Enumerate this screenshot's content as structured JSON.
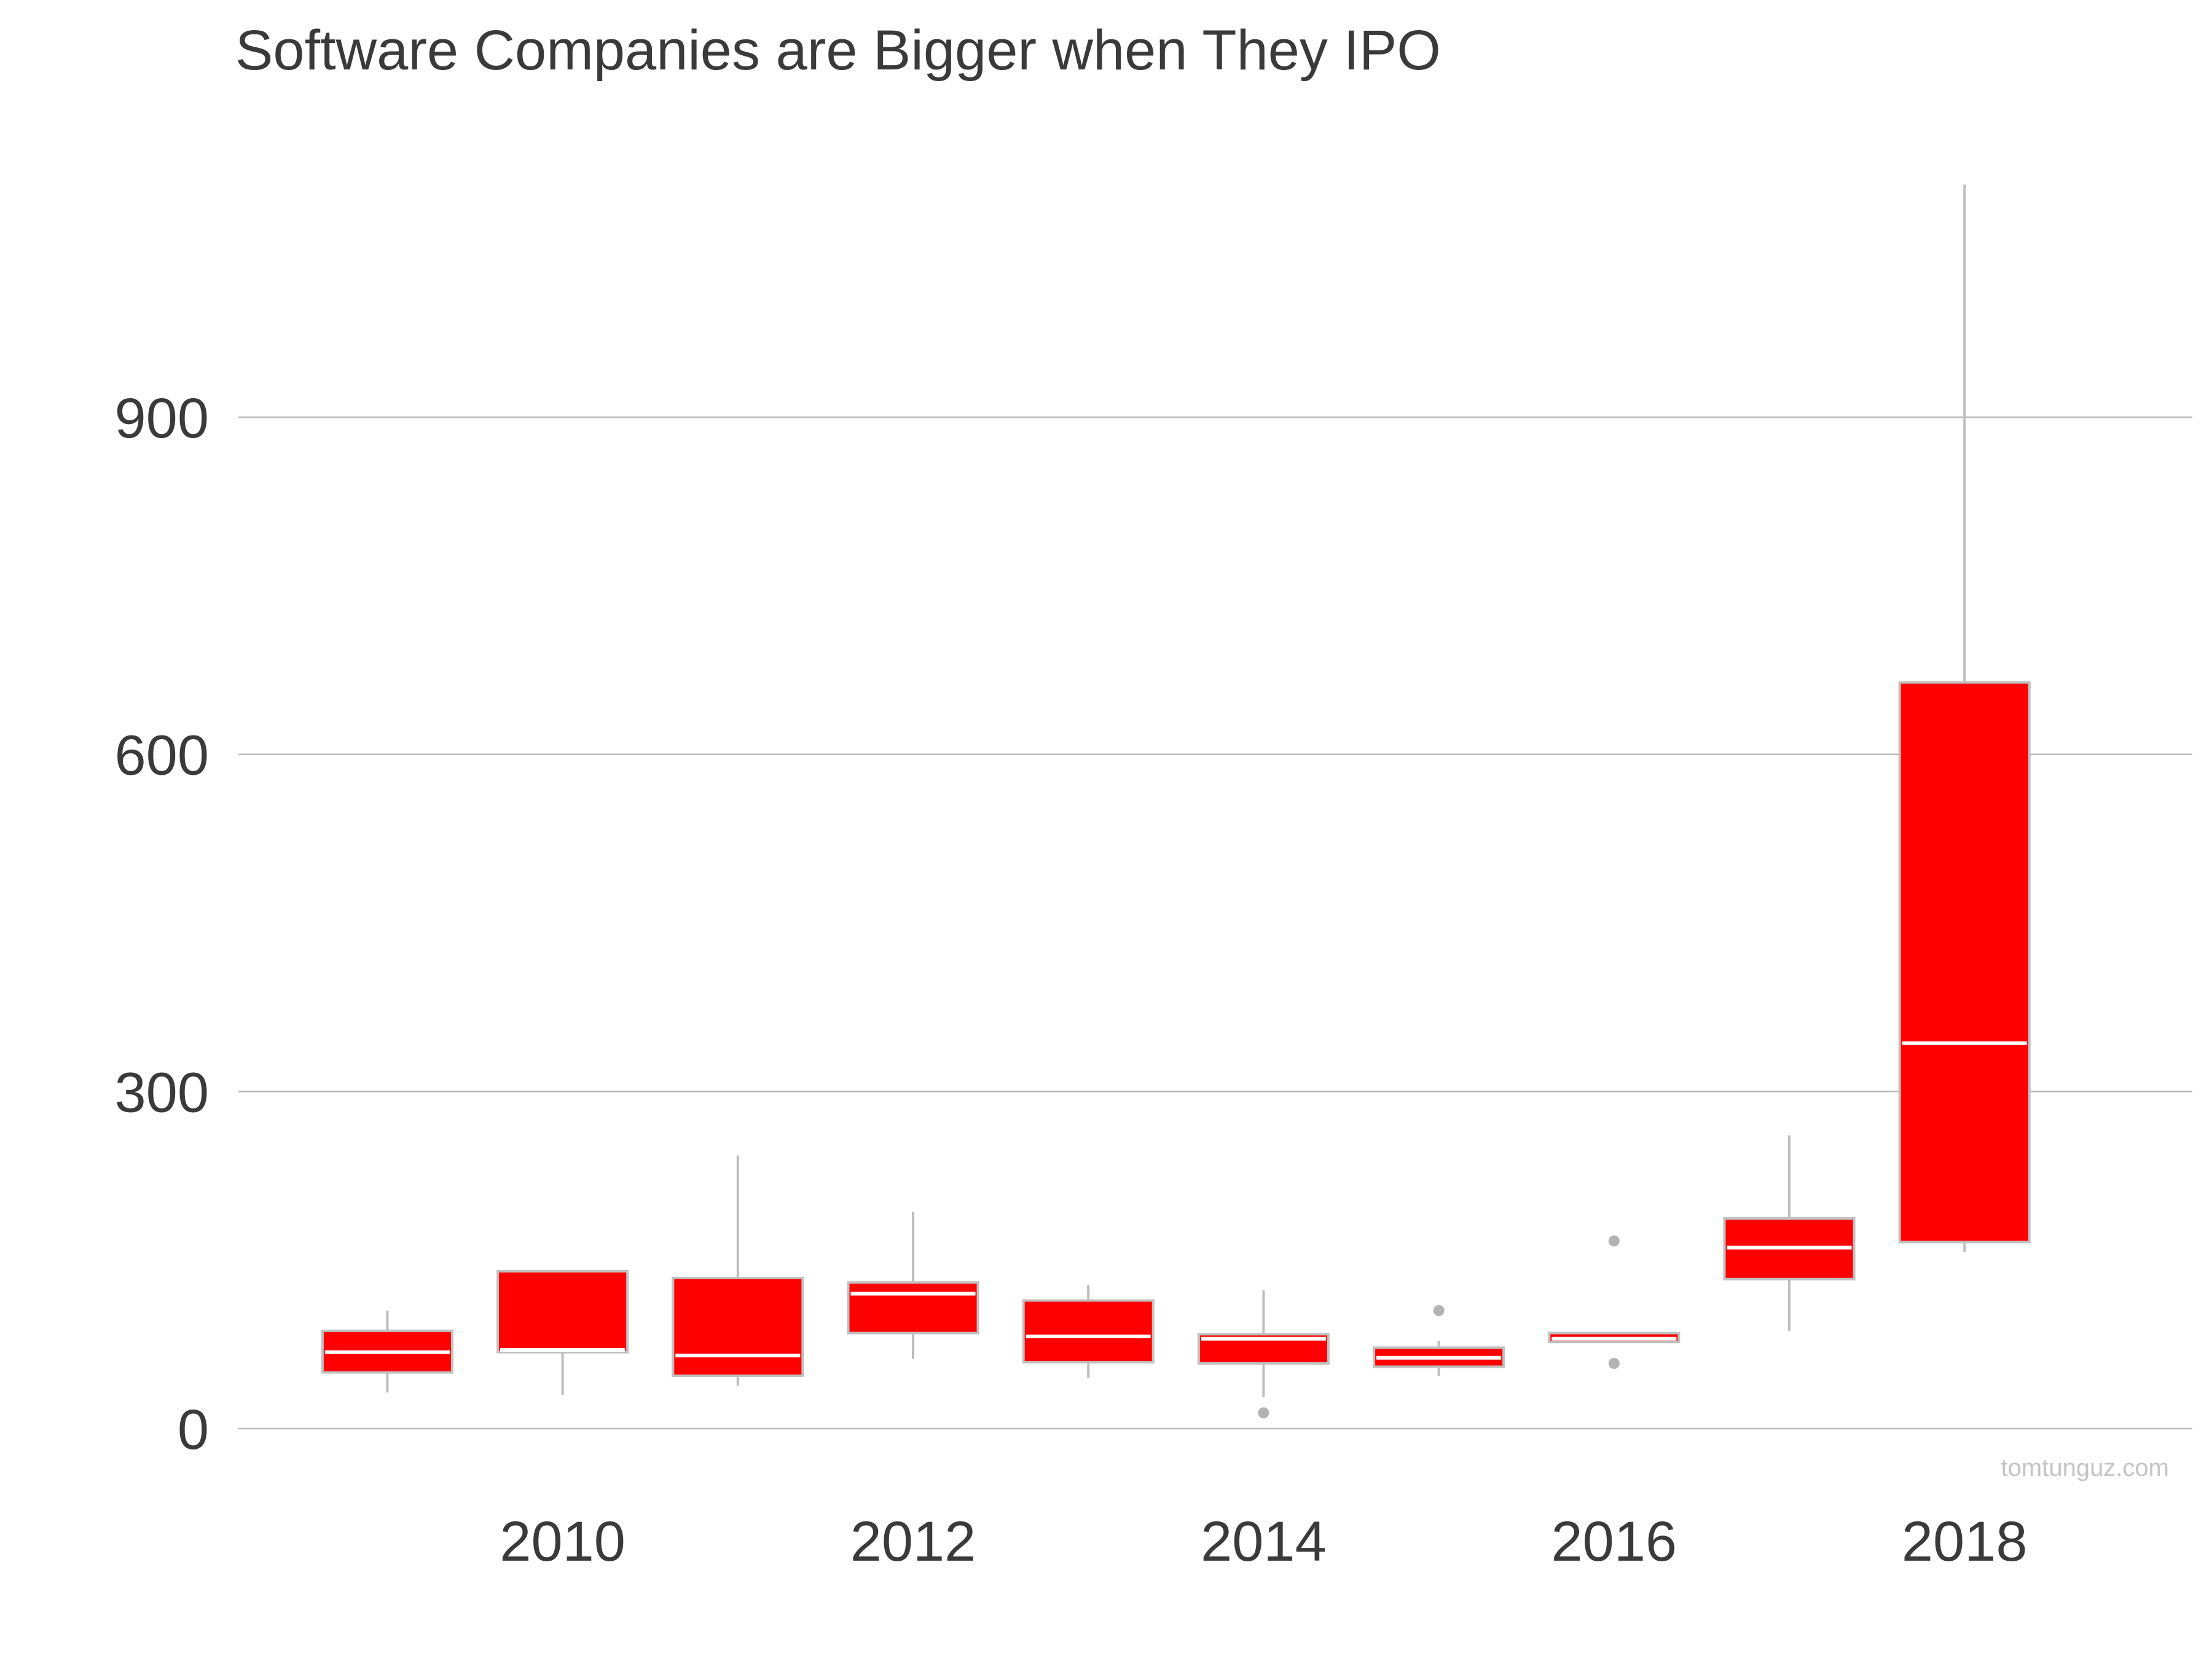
{
  "chart_data": {
    "type": "box",
    "title": "Software Companies are Bigger when They IPO",
    "xlabel": "",
    "ylabel": "",
    "ylim": [
      0,
      1110
    ],
    "yticks": [
      0,
      300,
      600,
      900
    ],
    "xlim": [
      2008.15,
      2019.3
    ],
    "xticks": [
      2010,
      2012,
      2014,
      2016,
      2018
    ],
    "grid": "horizontal",
    "legend": "none",
    "box_color": "#ff0000",
    "outline_color": "#c0c0c0",
    "boxes": [
      {
        "year": 2009,
        "whisker_low": 32,
        "q1": 50,
        "median": 68,
        "q3": 87,
        "whisker_high": 105,
        "outliers": []
      },
      {
        "year": 2010,
        "whisker_low": 30,
        "q1": 68,
        "median": 70,
        "q3": 140,
        "whisker_high": 140,
        "outliers": []
      },
      {
        "year": 2011,
        "whisker_low": 38,
        "q1": 47,
        "median": 65,
        "q3": 134,
        "whisker_high": 243,
        "outliers": []
      },
      {
        "year": 2012,
        "whisker_low": 62,
        "q1": 85,
        "median": 120,
        "q3": 130,
        "whisker_high": 193,
        "outliers": []
      },
      {
        "year": 2013,
        "whisker_low": 45,
        "q1": 59,
        "median": 82,
        "q3": 114,
        "whisker_high": 128,
        "outliers": []
      },
      {
        "year": 2014,
        "whisker_low": 28,
        "q1": 58,
        "median": 80,
        "q3": 84,
        "whisker_high": 123,
        "outliers": [
          14
        ]
      },
      {
        "year": 2015,
        "whisker_low": 47,
        "q1": 55,
        "median": 63,
        "q3": 72,
        "whisker_high": 78,
        "outliers": [
          105
        ]
      },
      {
        "year": 2016,
        "whisker_low": 77,
        "q1": 77,
        "median": 80,
        "q3": 85,
        "whisker_high": 85,
        "outliers": [
          167,
          58
        ]
      },
      {
        "year": 2017,
        "whisker_low": 87,
        "q1": 133,
        "median": 161,
        "q3": 187,
        "whisker_high": 261,
        "outliers": []
      },
      {
        "year": 2018,
        "whisker_low": 157,
        "q1": 166,
        "median": 343,
        "q3": 664,
        "whisker_high": 1107,
        "outliers": []
      }
    ],
    "credit": "tomtunguz.com"
  }
}
